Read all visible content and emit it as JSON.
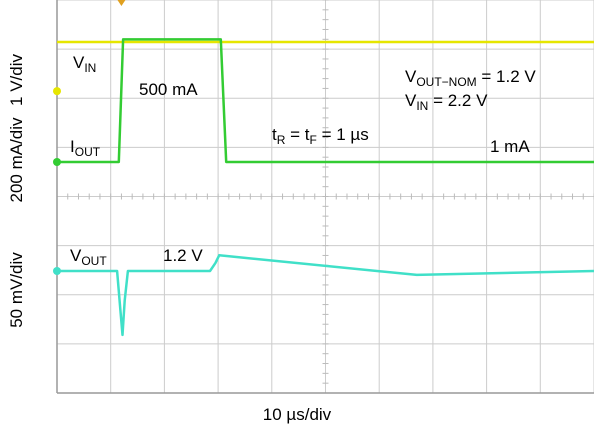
{
  "chart_data": {
    "type": "line",
    "x_unit": "µs",
    "x_range": [
      0,
      100
    ],
    "xlabel": "10 µs/div",
    "grid": true,
    "channels": [
      {
        "name": "VIN",
        "color": "#e6e600",
        "scale_label": "1 V/div",
        "points": [
          [
            0,
            2.2
          ],
          [
            100,
            2.2
          ]
        ]
      },
      {
        "name": "IOUT",
        "color": "#33cc33",
        "scale_label": "200 mA/div",
        "points": [
          [
            0,
            1
          ],
          [
            11.5,
            1
          ],
          [
            12.3,
            500
          ],
          [
            30.5,
            500
          ],
          [
            31.5,
            1
          ],
          [
            100,
            1
          ]
        ]
      },
      {
        "name": "VOUT",
        "color": "#40e0c8",
        "scale_label": "50 mV/div",
        "points": [
          [
            0,
            1.2
          ],
          [
            11.2,
            1.2
          ],
          [
            11.8,
            1.16
          ],
          [
            12.2,
            1.135
          ],
          [
            12.6,
            1.17
          ],
          [
            13.2,
            1.2
          ],
          [
            28.5,
            1.2
          ],
          [
            29.5,
            1.208
          ],
          [
            30.2,
            1.216
          ],
          [
            67,
            1.196
          ],
          [
            100,
            1.2
          ]
        ]
      }
    ],
    "annotations": {
      "vin_label_main": "V",
      "vin_label_sub": "IN",
      "iout_label_main": "I",
      "iout_label_sub": "OUT",
      "vout_label_main": "V",
      "vout_label_sub": "OUT",
      "iout_high_value": "500 mA",
      "iout_low_value": "1 mA",
      "vout_value": "1.2 V",
      "vout_nom_main": "V",
      "vout_nom_sub": "OUT−NOM",
      "vout_nom_value": " = 1.2 V",
      "vin_cond_main": "V",
      "vin_cond_sub": "IN",
      "vin_cond_value": " = 2.2 V",
      "rise_fall_t1": "t",
      "rise_fall_r": "R",
      "rise_fall_mid": " = t",
      "rise_fall_f": "F",
      "rise_fall_value": " = 1 µs"
    }
  }
}
